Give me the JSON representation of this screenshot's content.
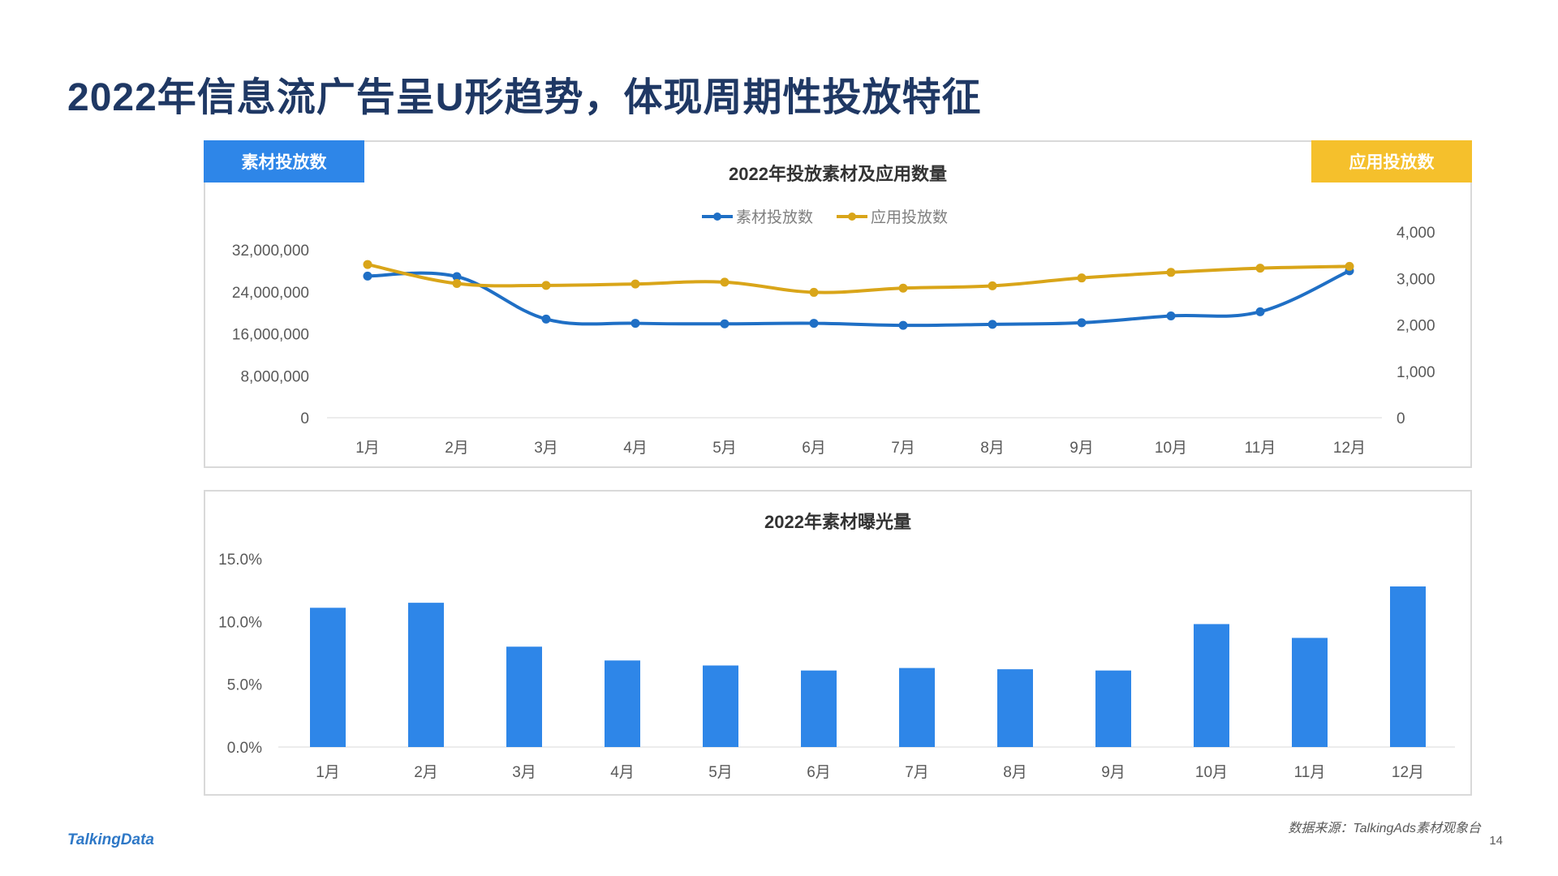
{
  "page": {
    "title": "2022年信息流广告呈U形趋势，体现周期性投放特征",
    "source": "数据来源：TalkingAds素材观象台",
    "page_number": "14",
    "brand": "TalkingData"
  },
  "colors": {
    "title": "#1f3864",
    "series_blue": "#1f6fc5",
    "series_gold": "#d9a519",
    "bar_blue": "#2e86e8",
    "tag_blue": "#2e86e8",
    "tag_gold": "#f5c02c",
    "grid": "#e6e6e6"
  },
  "chart_data": [
    {
      "type": "line",
      "title": "2022年投放素材及应用数量",
      "tag_left": "素材投放数",
      "tag_right": "应用投放数",
      "legend_placement": "top-center",
      "categories": [
        "1月",
        "2月",
        "3月",
        "4月",
        "5月",
        "6月",
        "7月",
        "8月",
        "9月",
        "10月",
        "11月",
        "12月"
      ],
      "y_left": {
        "ylim": [
          0,
          32000000
        ],
        "ticks": [
          "0",
          "8,000,000",
          "16,000,000",
          "24,000,000",
          "32,000,000"
        ]
      },
      "y_right": {
        "ylim": [
          0,
          4000
        ],
        "ticks": [
          "0",
          "1,000",
          "2,000",
          "3,000",
          "4,000"
        ]
      },
      "series": [
        {
          "name": "素材投放数",
          "axis": "left",
          "color": "#1f6fc5",
          "values": [
            27000000,
            26900000,
            18800000,
            18000000,
            17900000,
            18000000,
            17600000,
            17800000,
            18100000,
            19400000,
            20200000,
            28000000
          ]
        },
        {
          "name": "应用投放数",
          "axis": "right",
          "color": "#d9a519",
          "values": [
            3300,
            2890,
            2850,
            2880,
            2920,
            2700,
            2790,
            2840,
            3010,
            3130,
            3220,
            3260
          ]
        }
      ]
    },
    {
      "type": "bar",
      "title": "2022年素材曝光量",
      "categories": [
        "1月",
        "2月",
        "3月",
        "4月",
        "5月",
        "6月",
        "7月",
        "8月",
        "9月",
        "10月",
        "11月",
        "12月"
      ],
      "ylim": [
        0,
        15
      ],
      "y_ticks": [
        "0.0%",
        "5.0%",
        "10.0%",
        "15.0%"
      ],
      "values": [
        11.1,
        11.5,
        8.0,
        6.9,
        6.5,
        6.1,
        6.3,
        6.2,
        6.1,
        9.8,
        8.7,
        12.8
      ],
      "color": "#2e86e8"
    }
  ]
}
